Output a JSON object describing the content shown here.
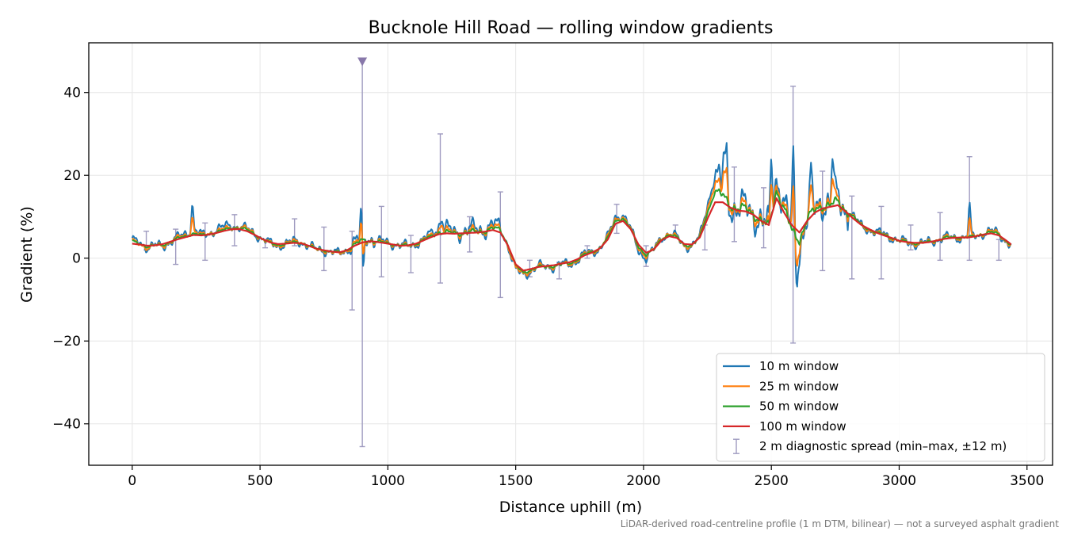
{
  "chart_data": {
    "type": "line",
    "title": "Bucknole Hill Road — rolling window gradients",
    "xlabel": "Distance uphill (m)",
    "ylabel": "Gradient (%)",
    "xlim": [
      -170,
      3600
    ],
    "ylim": [
      -50,
      52
    ],
    "xticks": [
      0,
      500,
      1000,
      1500,
      2000,
      2500,
      3000,
      3500
    ],
    "yticks": [
      -40,
      -20,
      0,
      20,
      40
    ],
    "grid": true,
    "legend_position": "lower-right",
    "footnote": "LiDAR-derived road-centreline profile (1 m DTM, bilinear) — not a surveyed asphalt gradient",
    "anchors_x": [
      0,
      30,
      60,
      90,
      120,
      150,
      180,
      210,
      240,
      270,
      300,
      330,
      360,
      390,
      420,
      450,
      480,
      510,
      540,
      570,
      600,
      630,
      660,
      690,
      720,
      750,
      780,
      810,
      840,
      870,
      900,
      930,
      960,
      990,
      1020,
      1050,
      1080,
      1110,
      1140,
      1170,
      1200,
      1230,
      1260,
      1290,
      1320,
      1350,
      1380,
      1410,
      1440,
      1470,
      1500,
      1530,
      1560,
      1590,
      1620,
      1650,
      1680,
      1710,
      1740,
      1770,
      1800,
      1830,
      1860,
      1890,
      1920,
      1950,
      1980,
      2010,
      2040,
      2070,
      2100,
      2130,
      2160,
      2190,
      2220,
      2250,
      2280,
      2310,
      2340,
      2370,
      2400,
      2430,
      2460,
      2490,
      2520,
      2550,
      2580,
      2610,
      2640,
      2670,
      2700,
      2730,
      2760,
      2790,
      2820,
      2850,
      2880,
      2910,
      2940,
      2970,
      3000,
      3030,
      3060,
      3090,
      3120,
      3150,
      3180,
      3210,
      3240,
      3270,
      3300,
      3330,
      3360,
      3390,
      3420,
      3440
    ],
    "series": [
      {
        "name": "10 m window",
        "color": "#1f77b4",
        "width": 2,
        "y": [
          4,
          4,
          2.5,
          3,
          3,
          4,
          5,
          6,
          7,
          5.5,
          6,
          7,
          7.5,
          8,
          7.5,
          7,
          6,
          4.5,
          3.5,
          3,
          3.5,
          4,
          4,
          3,
          2,
          2,
          1.5,
          1,
          2,
          4,
          5,
          5,
          4,
          4,
          3.5,
          3,
          3,
          3.5,
          4.5,
          6,
          8,
          7,
          6,
          6.5,
          7,
          7,
          7,
          8,
          7.5,
          3,
          -3,
          -4,
          -3,
          -2,
          -2,
          -2,
          -1.5,
          -1.5,
          -0.5,
          1,
          1.5,
          2.5,
          5,
          10,
          10.5,
          7,
          2,
          0,
          2,
          5,
          6,
          5,
          3,
          3,
          5,
          13,
          20,
          17,
          13,
          12,
          12,
          11,
          9,
          7,
          20,
          13,
          6,
          3,
          10,
          12,
          14,
          13,
          15,
          12,
          10,
          8,
          7,
          6,
          6,
          5,
          4,
          4,
          3.5,
          3.5,
          4,
          4.5,
          5,
          5,
          5,
          5,
          5.5,
          6,
          6.5,
          6,
          4,
          3,
          2,
          1,
          0
        ]
      },
      {
        "name": "25 m window",
        "color": "#ff7f0e",
        "width": 2,
        "y": [
          4,
          3.5,
          2.5,
          3,
          3,
          4,
          5,
          5.5,
          6.5,
          5.5,
          6,
          6.5,
          7,
          7.5,
          7.5,
          7,
          6,
          4.5,
          3.5,
          3,
          3.5,
          4,
          4,
          3,
          2,
          2,
          1.5,
          1,
          2,
          3.5,
          4.5,
          4.5,
          4,
          3.8,
          3.5,
          3,
          3,
          3.5,
          4.5,
          5.5,
          7,
          6.5,
          6,
          6.2,
          6.5,
          6.5,
          6.8,
          7.5,
          7,
          3,
          -2.5,
          -3.8,
          -3,
          -2,
          -2,
          -2,
          -1.5,
          -1.5,
          -0.5,
          1,
          1.5,
          2.5,
          5,
          9.5,
          10,
          7,
          2.5,
          0.5,
          2,
          5,
          6,
          5,
          3,
          3,
          5,
          12,
          18,
          16,
          13,
          12,
          12,
          11,
          9,
          7,
          18,
          12.5,
          6,
          3.5,
          10,
          12,
          13.5,
          13,
          14,
          12,
          10,
          8,
          7,
          6,
          5.8,
          5,
          4,
          4,
          3.5,
          3.5,
          4,
          4.5,
          5,
          5,
          5,
          5,
          5.5,
          6,
          6.5,
          6,
          4,
          3,
          2,
          1,
          0.5
        ]
      },
      {
        "name": "50 m window",
        "color": "#2ca02c",
        "width": 2,
        "y": [
          4,
          3.5,
          2.8,
          3,
          3.2,
          4,
          4.8,
          5.3,
          6,
          5.5,
          5.8,
          6.3,
          6.8,
          7.3,
          7.3,
          6.8,
          5.8,
          4.6,
          3.6,
          3.2,
          3.5,
          3.8,
          3.8,
          3,
          2.2,
          2,
          1.6,
          1.3,
          2,
          3.3,
          4.2,
          4.3,
          4,
          3.7,
          3.4,
          3,
          3.1,
          3.5,
          4.4,
          5.3,
          6.3,
          6.2,
          6,
          6.1,
          6.3,
          6.4,
          6.6,
          7.2,
          6.8,
          3.2,
          -1.8,
          -3.5,
          -2.8,
          -2.1,
          -2,
          -1.9,
          -1.5,
          -1.3,
          -0.4,
          0.9,
          1.5,
          2.5,
          4.8,
          9,
          9.6,
          7,
          2.8,
          0.8,
          2,
          4.7,
          5.7,
          5,
          3.2,
          3.1,
          5,
          11,
          16,
          15,
          12.8,
          12,
          11.8,
          10.8,
          9,
          7.4,
          16.5,
          12,
          6.5,
          4.5,
          9.5,
          11.5,
          12.8,
          12.8,
          13.5,
          11.8,
          10,
          8.1,
          7.1,
          6.1,
          5.7,
          5,
          4.1,
          4,
          3.6,
          3.6,
          4,
          4.4,
          4.9,
          5,
          5,
          5,
          5.4,
          5.9,
          6.3,
          5.8,
          4.1,
          3.1,
          2.1,
          1.3,
          0.8
        ]
      },
      {
        "name": "100 m window",
        "color": "#d62728",
        "width": 2.2,
        "y": [
          3.5,
          3.3,
          3,
          3.1,
          3.4,
          4,
          4.6,
          5.1,
          5.6,
          5.5,
          5.7,
          6.1,
          6.6,
          7,
          7,
          6.5,
          5.6,
          4.6,
          3.8,
          3.4,
          3.5,
          3.7,
          3.6,
          3,
          2.3,
          1.9,
          1.6,
          1.4,
          1.9,
          3,
          3.8,
          4.1,
          3.9,
          3.6,
          3.3,
          3,
          3.1,
          3.5,
          4.3,
          5.1,
          5.8,
          6,
          5.9,
          6,
          6.1,
          6.2,
          6.4,
          6.8,
          6.2,
          3,
          -1.5,
          -3,
          -2.6,
          -2.1,
          -1.9,
          -1.7,
          -1.3,
          -1,
          -0.3,
          0.7,
          1.4,
          2.4,
          4.5,
          8.3,
          9,
          7,
          3.3,
          1.3,
          2.1,
          4.3,
          5.3,
          4.9,
          3.4,
          3.3,
          5,
          9.5,
          13.5,
          13.5,
          12.2,
          11.5,
          11.3,
          10.5,
          9,
          8,
          14.5,
          11,
          8,
          6.2,
          9,
          11,
          12,
          12.4,
          12.8,
          11.3,
          9.6,
          8.1,
          7.1,
          6.2,
          5.5,
          4.9,
          4.2,
          3.9,
          3.7,
          3.7,
          3.9,
          4.3,
          4.7,
          4.9,
          5,
          5,
          5.3,
          5.7,
          6,
          5.5,
          4.2,
          3.2,
          2.3,
          1.6,
          1.1
        ]
      }
    ],
    "errorbars": {
      "name": "2 m diagnostic spread (min–max, ±12 m)",
      "color": "#9f9bc0",
      "points": [
        {
          "x": 55,
          "low": 2,
          "high": 6.5
        },
        {
          "x": 170,
          "low": -1.5,
          "high": 7
        },
        {
          "x": 285,
          "low": -0.5,
          "high": 8.5
        },
        {
          "x": 400,
          "low": 3,
          "high": 10.5
        },
        {
          "x": 520,
          "low": 2.5,
          "high": 4.5
        },
        {
          "x": 635,
          "low": 3,
          "high": 9.5
        },
        {
          "x": 750,
          "low": -3,
          "high": 7.5
        },
        {
          "x": 860,
          "low": -12.5,
          "high": 6.5
        },
        {
          "x": 900,
          "low": -45.5,
          "high": 47.5,
          "capped_top": true
        },
        {
          "x": 975,
          "low": -4.5,
          "high": 12.5
        },
        {
          "x": 1090,
          "low": -3.5,
          "high": 5.5
        },
        {
          "x": 1205,
          "low": -6,
          "high": 30
        },
        {
          "x": 1320,
          "low": 1.5,
          "high": 10
        },
        {
          "x": 1440,
          "low": -9.5,
          "high": 16
        },
        {
          "x": 1555,
          "low": -4.5,
          "high": -0.5
        },
        {
          "x": 1670,
          "low": -5,
          "high": -1
        },
        {
          "x": 1780,
          "low": 0,
          "high": 3
        },
        {
          "x": 1895,
          "low": 6,
          "high": 13
        },
        {
          "x": 2010,
          "low": -2,
          "high": 3
        },
        {
          "x": 2125,
          "low": 5,
          "high": 8
        },
        {
          "x": 2240,
          "low": 2,
          "high": 8
        },
        {
          "x": 2355,
          "low": 4,
          "high": 22
        },
        {
          "x": 2470,
          "low": 2.5,
          "high": 17
        },
        {
          "x": 2585,
          "low": -20.5,
          "high": 41.5
        },
        {
          "x": 2700,
          "low": -3,
          "high": 21
        },
        {
          "x": 2815,
          "low": -5,
          "high": 15
        },
        {
          "x": 2930,
          "low": -5,
          "high": 12.5
        },
        {
          "x": 3045,
          "low": 2,
          "high": 8
        },
        {
          "x": 3160,
          "low": -0.5,
          "high": 11
        },
        {
          "x": 3275,
          "low": -0.5,
          "high": 24.5
        },
        {
          "x": 3390,
          "low": -0.5,
          "high": 4.5
        }
      ]
    },
    "spikes": [
      {
        "x": 898,
        "y": 17
      },
      {
        "x": 902,
        "y": -10
      },
      {
        "x": 235,
        "y": 13.5
      },
      {
        "x": 1210,
        "y": 11
      },
      {
        "x": 2315,
        "y": 25
      },
      {
        "x": 2325,
        "y": 24.5
      },
      {
        "x": 2500,
        "y": 24.5
      },
      {
        "x": 2585,
        "y": 26
      },
      {
        "x": 2600,
        "y": -5.5
      },
      {
        "x": 2740,
        "y": 25
      },
      {
        "x": 2655,
        "y": 20
      },
      {
        "x": 3275,
        "y": 13
      }
    ]
  }
}
